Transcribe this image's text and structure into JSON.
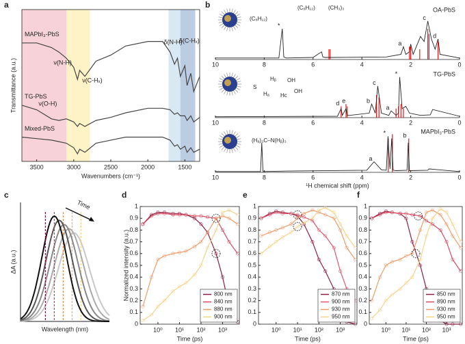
{
  "chart_data": [
    {
      "type": "line",
      "panel": "a",
      "xlabel": "Wavenumbers (cm⁻¹)",
      "ylabel": "Transmittance (a.u.)",
      "xlim": [
        3700,
        1300
      ],
      "ylim": [
        0,
        10
      ],
      "xticks": [
        3500,
        3000,
        2500,
        2000,
        1500
      ],
      "x": [
        3700,
        3500,
        3300,
        3200,
        3100,
        3000,
        2950,
        2920,
        2850,
        2700,
        2500,
        2300,
        2000,
        1800,
        1700,
        1640,
        1600,
        1560,
        1500,
        1470,
        1420,
        1380,
        1300
      ],
      "bands": [
        {
          "from": 3700,
          "to": 3100,
          "color": "#f7d3d9"
        },
        {
          "from": 3100,
          "to": 2780,
          "color": "#fdf3c6"
        },
        {
          "from": 1720,
          "to": 1560,
          "color": "#d8e9f4"
        },
        {
          "from": 1560,
          "to": 1360,
          "color": "#bccde2"
        }
      ],
      "series": [
        {
          "name": "MAPbI₃-PbS",
          "color": "#444444",
          "values": [
            7.8,
            7.8,
            7.5,
            7.2,
            6.8,
            6.2,
            5.4,
            6.0,
            5.6,
            6.6,
            7.0,
            7.6,
            7.9,
            7.9,
            7.2,
            6.4,
            6.8,
            5.6,
            6.3,
            5.0,
            5.8,
            4.6,
            5.6
          ]
        },
        {
          "name": "TG-PbS",
          "color": "#444444",
          "values": [
            3.7,
            3.4,
            2.8,
            2.7,
            2.8,
            2.6,
            2.3,
            2.5,
            2.3,
            2.7,
            2.9,
            3.2,
            3.5,
            3.5,
            3.4,
            3.1,
            3.2,
            3.0,
            3.0,
            2.7,
            3.0,
            2.6,
            2.9
          ]
        },
        {
          "name": "Mixed-PbS",
          "color": "#444444",
          "values": [
            1.6,
            1.5,
            1.4,
            1.3,
            1.2,
            0.9,
            0.5,
            0.8,
            0.6,
            1.2,
            1.4,
            1.6,
            1.6,
            1.6,
            1.4,
            1.0,
            1.1,
            0.8,
            1.0,
            0.6,
            0.9,
            0.6,
            0.8
          ]
        }
      ],
      "annotations": [
        {
          "text": "ν(N-H)",
          "x": 3150
        },
        {
          "text": "ν(C-Hₓ)",
          "x": 2750
        },
        {
          "text": "ν(O-H)",
          "x": 3350
        },
        {
          "text": "δ(N-H)",
          "x": 1660
        },
        {
          "text": "δ(C-Hₓ)",
          "x": 1440
        }
      ]
    },
    {
      "type": "spectrum",
      "panel": "b",
      "xlabel": "¹H chemical shift (ppm)",
      "xlim": [
        10,
        0
      ],
      "ylim": [
        0,
        10
      ],
      "xticks": [
        10,
        8,
        6,
        4,
        2,
        0
      ],
      "color": "#222222",
      "stick_color": "#e31a1c",
      "spectra": [
        {
          "name": "OA-PbS",
          "structure": [
            "(C₆H₁₂)",
            "(C₆H₁₂)",
            "(CH₃)₃"
          ],
          "x": [
            10,
            7.4,
            7.26,
            7.2,
            7.1,
            6,
            5.65,
            5.6,
            5.5,
            5.3,
            3,
            2.4,
            2.3,
            2.2,
            2.05,
            2.0,
            1.9,
            1.6,
            1.45,
            1.3,
            1.15,
            1.0,
            0.88,
            0.8,
            0
          ],
          "values": [
            0.3,
            0.3,
            6,
            0.5,
            0.3,
            0.4,
            1.5,
            0.5,
            0.4,
            0.4,
            0.5,
            1,
            2.5,
            1,
            1.5,
            3,
            1,
            4.5,
            3.5,
            7.5,
            4,
            2,
            4,
            1,
            0.3
          ],
          "sticks_x": [
            5.35,
            5.3,
            2.05,
            2.0,
            1.63,
            1.3,
            1.25,
            0.88
          ],
          "sticks": [
            2,
            2,
            2.5,
            2.5,
            2,
            6,
            5,
            3.5
          ],
          "labels": [
            {
              "text": "*",
              "x": 7.26
            },
            {
              "text": "a",
              "x": 2.3
            },
            {
              "text": "c",
              "x": 1.3
            },
            {
              "text": "d",
              "x": 0.88
            }
          ]
        },
        {
          "name": "TG-PbS",
          "structure": [
            "S",
            "Hₐ",
            "Hᵦ",
            "OH",
            "Hc",
            "OH"
          ],
          "x": [
            10,
            5,
            4.85,
            4.8,
            4.65,
            4.6,
            4.5,
            3.7,
            3.6,
            3.45,
            3.35,
            3.2,
            2.9,
            2.8,
            2.6,
            2.5,
            2.45,
            2.35,
            2.2,
            2.05,
            1.6,
            1.2,
            1.1,
            0
          ],
          "values": [
            0.2,
            0.3,
            2,
            0.5,
            2,
            0.5,
            0.5,
            1,
            3,
            1,
            7,
            1,
            0.5,
            1.5,
            0.5,
            1,
            9,
            2,
            2.5,
            1,
            0.5,
            0.6,
            1.8,
            0.3
          ],
          "sticks_x": [
            4.85,
            4.65,
            4.6,
            3.4,
            3.3,
            2.6,
            2.5,
            2.4,
            2.3
          ],
          "sticks": [
            2.5,
            3,
            2.5,
            5,
            4.5,
            2,
            2.5,
            3,
            2
          ],
          "labels": [
            {
              "text": "d",
              "x": 4.85
            },
            {
              "text": "e",
              "x": 4.6
            },
            {
              "text": "b",
              "x": 3.6
            },
            {
              "text": "c",
              "x": 3.35
            },
            {
              "text": "a",
              "x": 2.8
            },
            {
              "text": "*",
              "x": 2.45
            }
          ]
        },
        {
          "name": "MAPbI₃-PbS",
          "structure": [
            "(Hₐ)₃C–N(Hᵦ)₃"
          ],
          "x": [
            10,
            8.15,
            8.1,
            8.05,
            7,
            3.8,
            3.5,
            3.2,
            3.0,
            2.93,
            2.85,
            2.78,
            2.72,
            2.6,
            2.15,
            2.1,
            2.05,
            1.3,
            1.25,
            0
          ],
          "values": [
            0.2,
            0.2,
            7,
            0.2,
            0.3,
            0.5,
            2.5,
            0.6,
            0.5,
            8.5,
            0.8,
            8,
            0.5,
            0.4,
            0.5,
            7,
            0.4,
            0.5,
            0.8,
            0.2
          ],
          "sticks_x": [
            2.92,
            2.75,
            2.08
          ],
          "sticks": [
            8,
            9,
            8
          ],
          "labels": [
            {
              "text": "a",
              "x": 3.5
            },
            {
              "text": "*",
              "x": 2.93
            },
            {
              "text": "b",
              "x": 2.1
            }
          ]
        }
      ]
    },
    {
      "type": "diagram",
      "panel": "c",
      "xlabel": "Wavelength (nm)",
      "ylabel": "ΔA (a.u.)",
      "annotation": "Time"
    },
    {
      "type": "line",
      "panel": "d",
      "xscale": "log",
      "points": true,
      "legend": "lower right",
      "xlabel": "Time (ps)",
      "ylabel": "Normalized intensity (a.u.)",
      "xlim": [
        0.15,
        6000
      ],
      "ylim": [
        0,
        1
      ],
      "xticks": [
        {
          "value": 1,
          "label": "10⁰"
        },
        {
          "value": 10,
          "label": "10¹"
        },
        {
          "value": 100,
          "label": "10²"
        },
        {
          "value": 1000,
          "label": "10³"
        }
      ],
      "yticks": [
        0,
        0.1,
        0.2,
        0.3,
        0.4,
        0.5,
        0.6,
        0.7,
        0.8,
        0.9,
        1
      ],
      "x": [
        0.2,
        0.5,
        1,
        2,
        5,
        10,
        20,
        50,
        100,
        200,
        500,
        1000,
        2000,
        5000
      ],
      "series": [
        {
          "name": "800 nm",
          "color": "#8c1c40",
          "values": [
            0.85,
            0.93,
            0.95,
            0.95,
            0.94,
            0.94,
            0.93,
            0.9,
            0.85,
            0.78,
            0.6,
            0.4,
            0.15,
            0.02
          ]
        },
        {
          "name": "840 nm",
          "color": "#d9475d",
          "values": [
            0.85,
            0.92,
            0.94,
            0.94,
            0.93,
            0.93,
            0.93,
            0.92,
            0.92,
            0.91,
            0.9,
            0.8,
            0.7,
            0.6
          ]
        },
        {
          "name": "880 nm",
          "color": "#f09a6a",
          "values": [
            0.15,
            0.4,
            0.55,
            0.58,
            0.6,
            0.61,
            0.62,
            0.66,
            0.7,
            0.78,
            0.9,
            0.92,
            0.9,
            0.85
          ]
        },
        {
          "name": "900 nm",
          "color": "#f6d28a",
          "values": [
            0.03,
            0.08,
            0.15,
            0.2,
            0.28,
            0.32,
            0.35,
            0.42,
            0.5,
            0.65,
            0.8,
            0.95,
            0.97,
            0.93
          ]
        }
      ],
      "crossings": [
        {
          "x": 500,
          "y": 0.9
        },
        {
          "x": 500,
          "y": 0.6
        }
      ]
    },
    {
      "type": "line",
      "panel": "e",
      "xscale": "log",
      "points": true,
      "legend": "lower right",
      "xlabel": "Time (ps)",
      "xlim": [
        0.15,
        6000
      ],
      "ylim": [
        0,
        1
      ],
      "xticks": [
        {
          "value": 1,
          "label": "10⁰"
        },
        {
          "value": 10,
          "label": "10¹"
        },
        {
          "value": 100,
          "label": "10²"
        },
        {
          "value": 1000,
          "label": "10³"
        }
      ],
      "yticks": [
        0,
        0.1,
        0.2,
        0.3,
        0.4,
        0.5,
        0.6,
        0.7,
        0.8,
        0.9,
        1
      ],
      "x": [
        0.2,
        0.5,
        1,
        2,
        5,
        10,
        20,
        50,
        100,
        200,
        500,
        1000,
        2000,
        5000
      ],
      "series": [
        {
          "name": "870 nm",
          "color": "#8c1c40",
          "values": [
            0.9,
            0.94,
            0.96,
            0.95,
            0.94,
            0.92,
            0.85,
            0.7,
            0.55,
            0.45,
            0.3,
            0.1,
            0.02,
            0
          ]
        },
        {
          "name": "900 nm",
          "color": "#e0556a",
          "values": [
            0.9,
            0.93,
            0.95,
            0.94,
            0.94,
            0.93,
            0.91,
            0.88,
            0.8,
            0.75,
            0.65,
            0.45,
            0.3,
            0.2
          ]
        },
        {
          "name": "930 nm",
          "color": "#f09a6a",
          "values": [
            0.75,
            0.78,
            0.8,
            0.82,
            0.85,
            0.9,
            0.94,
            0.97,
            0.95,
            0.93,
            0.9,
            0.8,
            0.65,
            0.55
          ]
        },
        {
          "name": "950 nm",
          "color": "#f6d28a",
          "values": [
            0.6,
            0.66,
            0.7,
            0.74,
            0.78,
            0.83,
            0.86,
            0.9,
            0.97,
            0.99,
            0.95,
            0.85,
            0.75,
            0.65
          ]
        }
      ],
      "crossings": [
        {
          "x": 10,
          "y": 0.93
        },
        {
          "x": 10,
          "y": 0.83
        }
      ]
    },
    {
      "type": "line",
      "panel": "f",
      "xscale": "log",
      "points": true,
      "legend": "lower right",
      "xlabel": "Time (ps)",
      "xlim": [
        0.15,
        6000
      ],
      "ylim": [
        0,
        1
      ],
      "xticks": [
        {
          "value": 1,
          "label": "10⁰"
        },
        {
          "value": 10,
          "label": "10¹"
        },
        {
          "value": 100,
          "label": "10²"
        },
        {
          "value": 1000,
          "label": "10³"
        }
      ],
      "yticks": [
        0,
        0.1,
        0.2,
        0.3,
        0.4,
        0.5,
        0.6,
        0.7,
        0.8,
        0.9,
        1
      ],
      "x": [
        0.2,
        0.5,
        1,
        2,
        5,
        10,
        20,
        50,
        100,
        200,
        500,
        1000,
        2000,
        5000
      ],
      "series": [
        {
          "name": "850 nm",
          "color": "#8c1c40",
          "values": [
            0.9,
            0.94,
            0.96,
            0.95,
            0.94,
            0.9,
            0.7,
            0.5,
            0.3,
            0.15,
            0.03,
            0,
            0,
            0
          ]
        },
        {
          "name": "890 nm",
          "color": "#d9475d",
          "values": [
            0.9,
            0.93,
            0.95,
            0.95,
            0.94,
            0.94,
            0.93,
            0.92,
            0.88,
            0.85,
            0.8,
            0.7,
            0.55,
            0.45
          ]
        },
        {
          "name": "930 nm",
          "color": "#f09a6a",
          "values": [
            0.2,
            0.4,
            0.5,
            0.53,
            0.55,
            0.58,
            0.6,
            0.8,
            0.95,
            0.97,
            0.93,
            0.85,
            0.75,
            0.65
          ]
        },
        {
          "name": "950 nm",
          "color": "#f6d28a",
          "values": [
            0.05,
            0.12,
            0.2,
            0.25,
            0.3,
            0.35,
            0.4,
            0.55,
            0.75,
            0.9,
            0.98,
            0.95,
            0.85,
            0.7
          ]
        }
      ],
      "crossings": [
        {
          "x": 40,
          "y": 0.92
        },
        {
          "x": 30,
          "y": 0.6
        }
      ]
    }
  ]
}
